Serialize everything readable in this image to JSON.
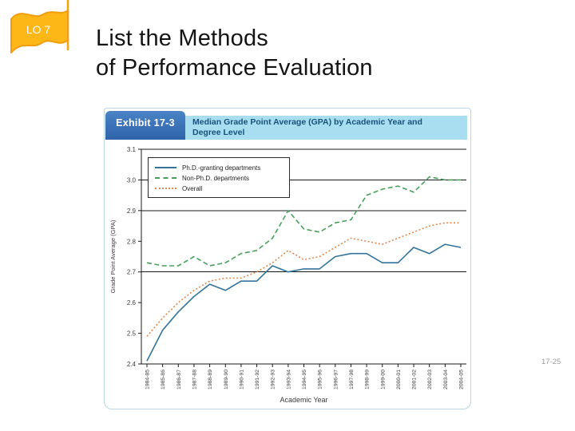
{
  "slide": {
    "lo_label": "LO 7",
    "title_line1": "List the Methods",
    "title_line2": "of Performance Evaluation",
    "page_number": "17-25"
  },
  "exhibit": {
    "tab": "Exhibit 17-3",
    "caption": "Median Grade Point Average (GPA) by Academic Year and Degree Level"
  },
  "chart_data": {
    "type": "line",
    "title": "Median Grade Point Average (GPA) by Academic Year and Degree Level",
    "xlabel": "Academic Year",
    "ylabel": "Grade Point Average (GPA)",
    "ylim": [
      2.4,
      3.1
    ],
    "yticks": [
      2.4,
      2.5,
      2.6,
      2.7,
      2.8,
      2.9,
      3.0,
      3.1
    ],
    "gridlines_at": [
      2.7,
      2.9,
      3.0
    ],
    "grid": "partial-horizontal",
    "legend_position": "top-left",
    "categories": [
      "1984-85",
      "1985-86",
      "1986-87",
      "1987-88",
      "1988-89",
      "1989-90",
      "1990-91",
      "1991-92",
      "1992-93",
      "1993-94",
      "1994-95",
      "1995-96",
      "1996-97",
      "1997-98",
      "1998-99",
      "1999-00",
      "2000-01",
      "2001-02",
      "2002-03",
      "2003-04",
      "2004-05"
    ],
    "series": [
      {
        "name": "Ph.D.-granting departments",
        "style": "solid",
        "color": "#34749c",
        "values": [
          2.41,
          2.51,
          2.57,
          2.62,
          2.66,
          2.64,
          2.67,
          2.67,
          2.72,
          2.7,
          2.71,
          2.71,
          2.75,
          2.76,
          2.76,
          2.73,
          2.73,
          2.78,
          2.76,
          2.79,
          2.78
        ]
      },
      {
        "name": "Non-Ph.D. departments",
        "style": "dashed",
        "color": "#47a05a",
        "values": [
          2.73,
          2.72,
          2.72,
          2.75,
          2.72,
          2.73,
          2.76,
          2.77,
          2.81,
          2.9,
          2.84,
          2.83,
          2.86,
          2.87,
          2.95,
          2.97,
          2.98,
          2.96,
          3.01,
          3.0,
          3.0
        ]
      },
      {
        "name": "Overall",
        "style": "dotted",
        "color": "#e0884d",
        "values": [
          2.49,
          2.55,
          2.6,
          2.64,
          2.67,
          2.68,
          2.68,
          2.7,
          2.73,
          2.77,
          2.74,
          2.75,
          2.78,
          2.81,
          2.8,
          2.79,
          2.81,
          2.83,
          2.85,
          2.86,
          2.86
        ]
      }
    ]
  },
  "colors": {
    "flag_fill": "#fdb716",
    "flag_border": "#f29d0d",
    "tab_blue": "#2f64ab",
    "strip_blue": "#a9def0",
    "strip_text": "#14537c",
    "axis_black": "#1a1a1a",
    "page_number_gray": "#9a9a9a"
  }
}
